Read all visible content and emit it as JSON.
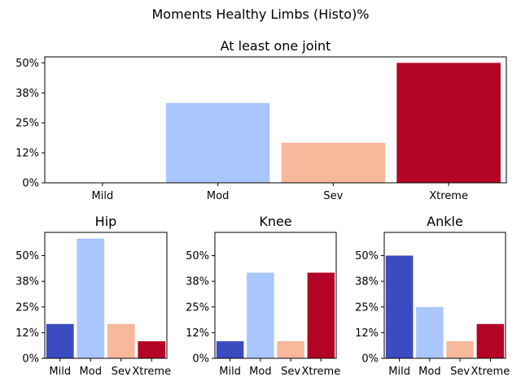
{
  "figure": {
    "suptitle": "Moments Healthy Limbs (Histo)%"
  },
  "chart_data": [
    {
      "type": "bar",
      "title": "At least one joint",
      "categories": [
        "Mild",
        "Mod",
        "Sev",
        "Xtreme"
      ],
      "values": [
        0,
        33.3,
        16.7,
        50.0
      ],
      "colors": [
        "#3b4cc0",
        "#aac7fd",
        "#f7b89c",
        "#b40426"
      ],
      "ylim": [
        0,
        52.5
      ],
      "yticks": [
        0,
        12.5,
        25,
        37.5,
        50
      ],
      "ytick_labels": [
        "0%",
        "12%",
        "25%",
        "38%",
        "50%"
      ],
      "xlabel": "",
      "ylabel": "",
      "grid": false
    },
    {
      "type": "bar",
      "title": "Hip",
      "categories": [
        "Mild",
        "Mod",
        "Sev",
        "Xtreme"
      ],
      "values": [
        16.7,
        58.3,
        16.7,
        8.3
      ],
      "colors": [
        "#3b4cc0",
        "#aac7fd",
        "#f7b89c",
        "#b40426"
      ],
      "ylim": [
        0,
        61.3
      ],
      "yticks": [
        0,
        12.5,
        25,
        37.5,
        50
      ],
      "ytick_labels": [
        "0%",
        "12%",
        "25%",
        "38%",
        "50%"
      ],
      "xlabel": "",
      "ylabel": "",
      "grid": false
    },
    {
      "type": "bar",
      "title": "Knee",
      "categories": [
        "Mild",
        "Mod",
        "Sev",
        "Xtreme"
      ],
      "values": [
        8.3,
        41.7,
        8.3,
        41.7
      ],
      "colors": [
        "#3b4cc0",
        "#aac7fd",
        "#f7b89c",
        "#b40426"
      ],
      "ylim": [
        0,
        61.3
      ],
      "yticks": [
        0,
        12.5,
        25,
        37.5,
        50
      ],
      "ytick_labels": [
        "0%",
        "12%",
        "25%",
        "38%",
        "50%"
      ],
      "xlabel": "",
      "ylabel": "",
      "grid": false
    },
    {
      "type": "bar",
      "title": "Ankle",
      "categories": [
        "Mild",
        "Mod",
        "Sev",
        "Xtreme"
      ],
      "values": [
        50.0,
        25.0,
        8.3,
        16.7
      ],
      "colors": [
        "#3b4cc0",
        "#aac7fd",
        "#f7b89c",
        "#b40426"
      ],
      "ylim": [
        0,
        61.3
      ],
      "yticks": [
        0,
        12.5,
        25,
        37.5,
        50
      ],
      "ytick_labels": [
        "0%",
        "12%",
        "25%",
        "38%",
        "50%"
      ],
      "xlabel": "",
      "ylabel": "",
      "grid": false
    }
  ]
}
